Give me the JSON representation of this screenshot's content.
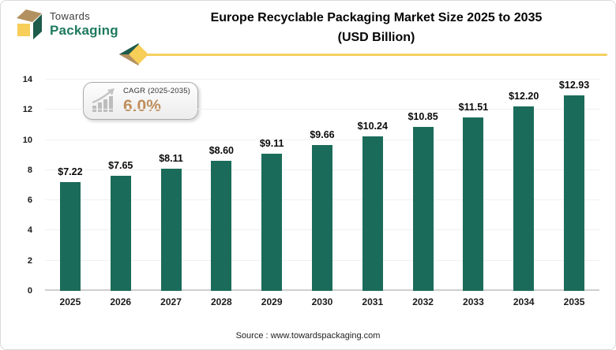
{
  "brand": {
    "line1": "Towards",
    "line2": "Packaging"
  },
  "header": {
    "title_line1": "Europe Recyclable Packaging Market Size 2025 to 2035",
    "title_line2": "(USD Billion)"
  },
  "cagr_badge": {
    "label": "CAGR (2025-2035)",
    "value": "6.0%"
  },
  "chart_data": {
    "type": "bar",
    "title": "Europe Recyclable Packaging Market Size 2025 to 2035 (USD Billion)",
    "categories": [
      "2025",
      "2026",
      "2027",
      "2028",
      "2029",
      "2030",
      "2031",
      "2032",
      "2033",
      "2034",
      "2035"
    ],
    "values": [
      7.22,
      7.65,
      8.11,
      8.6,
      9.11,
      9.66,
      10.24,
      10.85,
      11.51,
      12.2,
      12.93
    ],
    "value_labels": [
      "$7.22",
      "$7.65",
      "$8.11",
      "$8.60",
      "$9.11",
      "$9.66",
      "$10.24",
      "$10.85",
      "$11.51",
      "$12.20",
      "$12.93"
    ],
    "xlabel": "",
    "ylabel": "",
    "ylim": [
      0,
      14
    ],
    "yticks": [
      0,
      2,
      4,
      6,
      8,
      10,
      12,
      14
    ],
    "grid": true,
    "legend": false,
    "bar_color": "#1b6b5a"
  },
  "footer": {
    "source": "Source : www.towardspackaging.com"
  },
  "colors": {
    "bar": "#1b6b5a",
    "accent_yellow": "#f5d05e",
    "brand_green": "#1e7a5f",
    "logo_green": "#1d5b4b",
    "logo_tan": "#b3905f",
    "logo_yellow": "#f7ce58",
    "cagr_value": "#bf8e5c",
    "gridline": "#f0f0f0"
  }
}
